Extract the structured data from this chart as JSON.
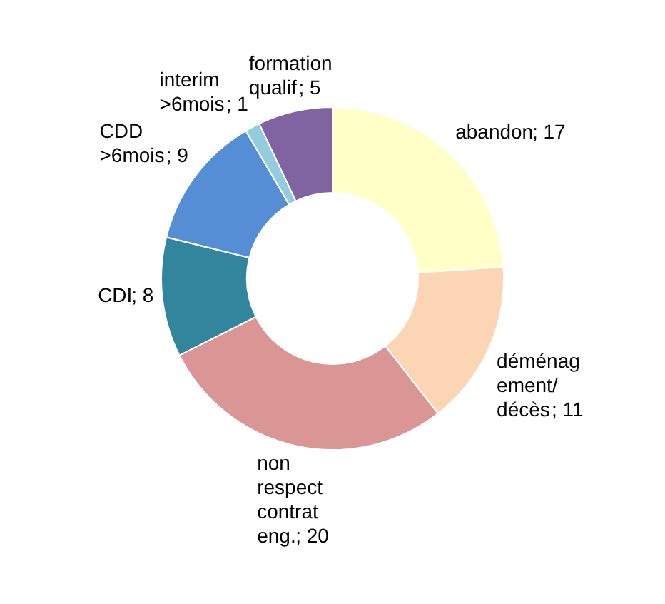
{
  "chart_data": {
    "type": "donut",
    "categories": [
      "abandon",
      "déménag ement/ décès",
      "non respect contrat eng.",
      "CDI",
      "CDD >6mois",
      "interim >6mois",
      "formation qualif"
    ],
    "values": [
      17,
      11,
      20,
      8,
      9,
      1,
      5
    ],
    "colors": [
      "#ffffc8",
      "#fcd5b5",
      "#d99694",
      "#31859c",
      "#558ed5",
      "#93cddd",
      "#8064a2"
    ],
    "value_labels": [
      "; 17",
      "; 11",
      "; 20",
      "; 8",
      "; 9",
      "; 1",
      "; 5"
    ]
  }
}
